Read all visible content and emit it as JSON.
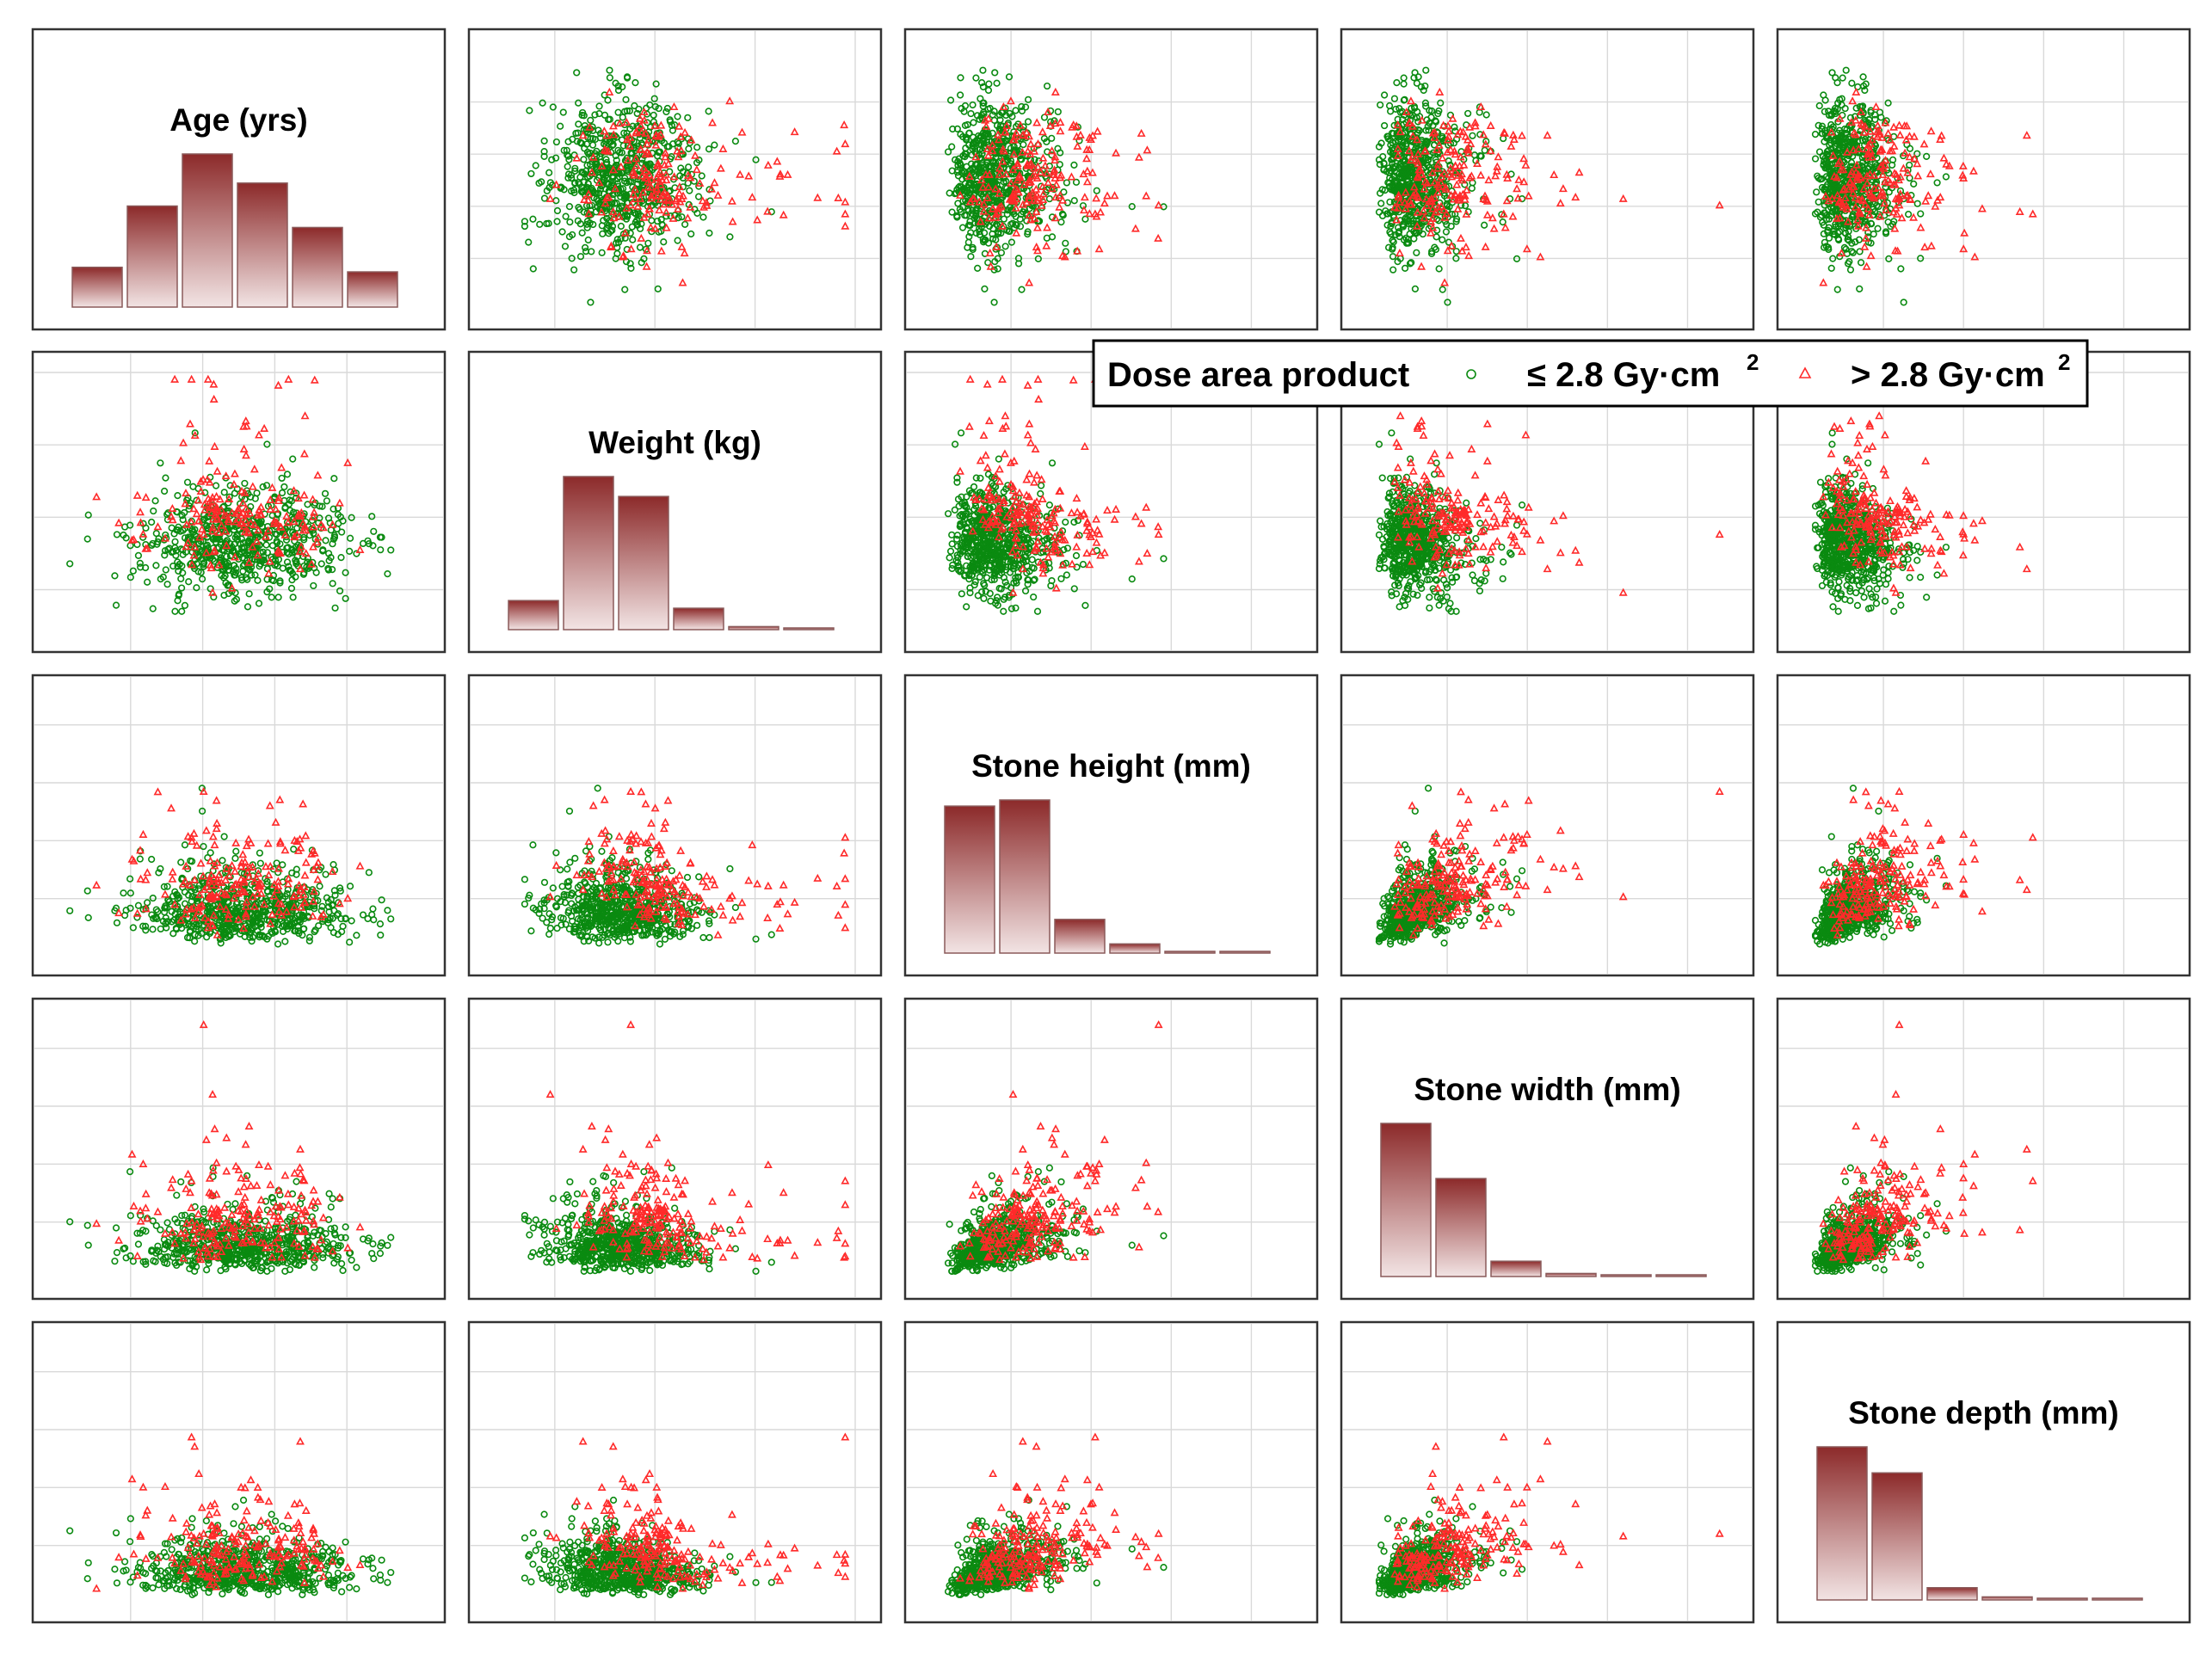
{
  "chart_data": {
    "type": "scatter-matrix",
    "variables": [
      {
        "key": "age",
        "label": "Age (yrs)",
        "range": [
          0,
          100
        ],
        "grid": [
          20,
          40,
          60,
          80
        ]
      },
      {
        "key": "weight",
        "label": "Weight (kg)",
        "range": [
          20,
          200
        ],
        "grid": [
          50,
          100,
          150,
          200
        ]
      },
      {
        "key": "height",
        "label": "Stone height (mm)",
        "range": [
          0,
          90
        ],
        "grid": [
          20,
          40,
          60,
          80
        ]
      },
      {
        "key": "width",
        "label": "Stone width (mm)",
        "range": [
          0,
          90
        ],
        "grid": [
          20,
          40,
          60,
          80
        ]
      },
      {
        "key": "depth",
        "label": "Stone depth (mm)",
        "range": [
          0,
          90
        ],
        "grid": [
          20,
          40,
          60,
          80
        ]
      }
    ],
    "histograms": [
      {
        "variable": "Age (yrs)",
        "bins": [
          "0-17",
          "17-33",
          "33-50",
          "50-67",
          "67-83",
          "83-100"
        ],
        "counts": [
          26,
          66,
          100,
          81,
          52,
          23
        ]
      },
      {
        "variable": "Weight (kg)",
        "bins": [
          "20-50",
          "50-80",
          "80-110",
          "110-140",
          "140-170",
          "170-200"
        ],
        "counts": [
          19,
          100,
          87,
          14,
          2,
          1
        ]
      },
      {
        "variable": "Stone height (mm)",
        "bins": [
          "0-15",
          "15-30",
          "30-45",
          "45-60",
          "60-75",
          "75-90"
        ],
        "counts": [
          96,
          100,
          22,
          6,
          1,
          1
        ]
      },
      {
        "variable": "Stone width (mm)",
        "bins": [
          "0-15",
          "15-30",
          "30-45",
          "45-60",
          "60-75",
          "75-90"
        ],
        "counts": [
          100,
          64,
          10,
          2,
          1,
          1
        ]
      },
      {
        "variable": "Stone depth (mm)",
        "bins": [
          "0-15",
          "15-30",
          "30-45",
          "45-60",
          "60-75",
          "75-90"
        ],
        "counts": [
          100,
          83,
          8,
          2,
          1,
          1
        ]
      }
    ],
    "series": [
      {
        "name": "≤ 2.8 Gy·cm2",
        "marker": "circle",
        "color": "#0a8a10",
        "approx_n": 700
      },
      {
        "name": "> 2.8 Gy·cm2",
        "marker": "triangle",
        "color": "#ff2a2a",
        "approx_n": 140
      }
    ],
    "distribution_summary": {
      "age": {
        "mean": 50,
        "sd": 15
      },
      "weight": {
        "mean": 85,
        "sd": 18
      },
      "height": {
        "median": 17,
        "max": 85
      },
      "width": {
        "median": 13,
        "max": 88
      },
      "depth": {
        "median": 12,
        "max": 88
      },
      "stone_correlation": 0.75,
      "age_weight_correlation": 0.0
    }
  },
  "legend": {
    "title": "Dose area product",
    "low_label": "≤ 2.8 Gy·cm",
    "low_sup": "2",
    "high_label": "> 2.8 Gy·cm",
    "high_sup": "2"
  },
  "colors": {
    "low": "#0a8a10",
    "high": "#ff2a2a",
    "bar_top": "#8c2a2a",
    "bar_bottom": "#f2e4e4"
  }
}
